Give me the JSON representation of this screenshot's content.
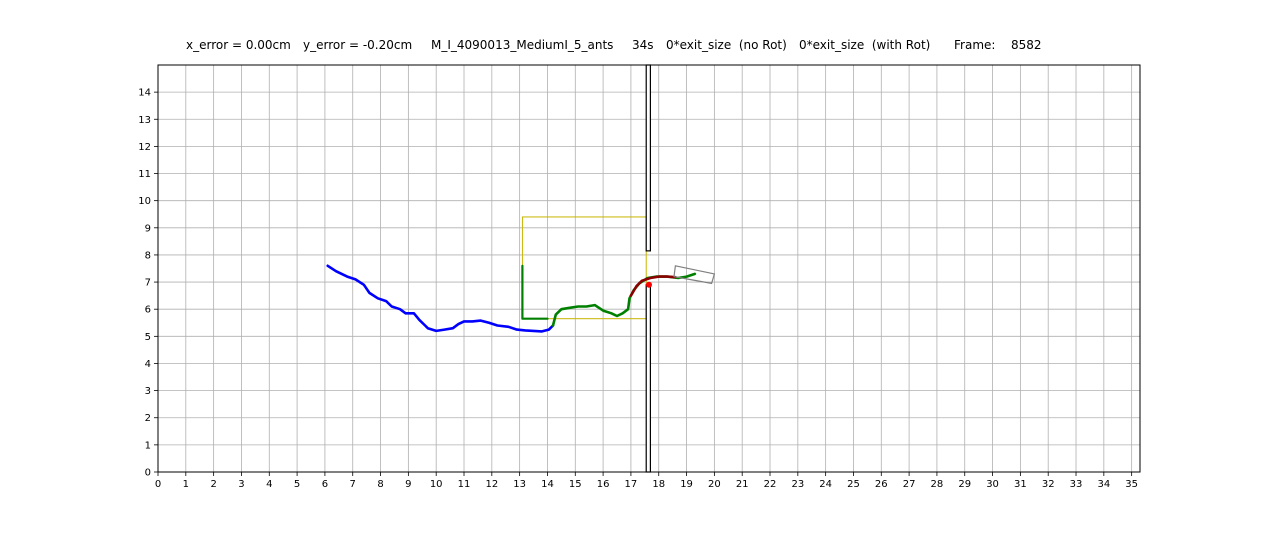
{
  "header": {
    "x_error": "x_error = 0.00cm",
    "y_error": "y_error = -0.20cm",
    "experiment": "M_I_4090013_MediumI_5_ants",
    "time": "34s",
    "exit_no_rot": "0*exit_size  (no Rot)",
    "exit_with_rot": "0*exit_size  (with Rot)",
    "frame_label": "Frame:",
    "frame_value": "8582"
  },
  "chart_data": {
    "type": "line",
    "title": "",
    "xlabel": "",
    "ylabel": "",
    "xlim": [
      0,
      35.3
    ],
    "ylim": [
      0,
      15
    ],
    "xticks": [
      0,
      1,
      2,
      3,
      4,
      5,
      6,
      7,
      8,
      9,
      10,
      11,
      12,
      13,
      14,
      15,
      16,
      17,
      18,
      19,
      20,
      21,
      22,
      23,
      24,
      25,
      26,
      27,
      28,
      29,
      30,
      31,
      32,
      33,
      34,
      35
    ],
    "yticks": [
      0,
      1,
      2,
      3,
      4,
      5,
      6,
      7,
      8,
      9,
      10,
      11,
      12,
      13,
      14
    ],
    "grid": true,
    "colors": {
      "past_path": "#0000ff",
      "current_path": "#008000",
      "recent_path": "#8b0000",
      "box": "#c8b400",
      "wall": "#000000",
      "load": "#808080",
      "marker": "#ff0000"
    },
    "series": [
      {
        "role": "past-trajectory",
        "color": "#0000ff",
        "points": [
          [
            6.1,
            7.6
          ],
          [
            6.4,
            7.4
          ],
          [
            6.8,
            7.2
          ],
          [
            7.1,
            7.1
          ],
          [
            7.4,
            6.9
          ],
          [
            7.6,
            6.6
          ],
          [
            7.9,
            6.4
          ],
          [
            8.2,
            6.3
          ],
          [
            8.4,
            6.1
          ],
          [
            8.7,
            6.0
          ],
          [
            8.9,
            5.85
          ],
          [
            9.2,
            5.85
          ],
          [
            9.4,
            5.6
          ],
          [
            9.6,
            5.4
          ],
          [
            9.7,
            5.3
          ],
          [
            10.0,
            5.2
          ],
          [
            10.3,
            5.25
          ],
          [
            10.6,
            5.3
          ],
          [
            10.8,
            5.45
          ],
          [
            11.0,
            5.55
          ],
          [
            11.3,
            5.55
          ],
          [
            11.6,
            5.58
          ],
          [
            11.9,
            5.5
          ],
          [
            12.2,
            5.4
          ],
          [
            12.6,
            5.35
          ],
          [
            12.9,
            5.25
          ],
          [
            13.2,
            5.22
          ],
          [
            13.5,
            5.2
          ],
          [
            13.8,
            5.18
          ],
          [
            14.05,
            5.25
          ],
          [
            14.2,
            5.4
          ]
        ]
      },
      {
        "role": "current-trajectory",
        "color": "#008000",
        "points": [
          [
            14.2,
            5.4
          ],
          [
            14.3,
            5.8
          ],
          [
            14.5,
            6.0
          ],
          [
            14.8,
            6.05
          ],
          [
            15.1,
            6.1
          ],
          [
            15.4,
            6.1
          ],
          [
            15.7,
            6.15
          ],
          [
            16.0,
            5.95
          ],
          [
            16.3,
            5.85
          ],
          [
            16.5,
            5.75
          ],
          [
            16.7,
            5.85
          ],
          [
            16.9,
            6.0
          ],
          [
            16.95,
            6.4
          ],
          [
            17.1,
            6.7
          ],
          [
            17.3,
            6.95
          ],
          [
            17.6,
            7.15
          ],
          [
            17.9,
            7.2
          ],
          [
            18.3,
            7.2
          ],
          [
            18.7,
            7.15
          ],
          [
            19.0,
            7.2
          ],
          [
            19.3,
            7.3
          ]
        ]
      },
      {
        "role": "recent-trajectory",
        "color": "#8b0000",
        "points": [
          [
            17.0,
            6.5
          ],
          [
            17.2,
            6.85
          ],
          [
            17.4,
            7.05
          ],
          [
            17.7,
            7.15
          ],
          [
            18.0,
            7.2
          ],
          [
            18.3,
            7.2
          ],
          [
            18.6,
            7.18
          ]
        ]
      },
      {
        "role": "l-bracket",
        "color": "#008000",
        "points": [
          [
            13.1,
            7.6
          ],
          [
            13.1,
            5.65
          ],
          [
            14.0,
            5.65
          ]
        ]
      }
    ],
    "box": {
      "x0": 13.1,
      "x1": 17.55,
      "y0": 5.65,
      "y1": 9.4
    },
    "walls": {
      "x0": 17.55,
      "x1": 17.7,
      "upper_y": [
        8.15,
        15.0
      ],
      "lower_y": [
        0,
        6.9
      ]
    },
    "load_rect": {
      "corners": [
        [
          18.6,
          7.6
        ],
        [
          20.0,
          7.3
        ],
        [
          19.9,
          6.95
        ],
        [
          18.55,
          7.2
        ]
      ]
    },
    "marker": {
      "x": 17.65,
      "y": 6.9
    }
  }
}
